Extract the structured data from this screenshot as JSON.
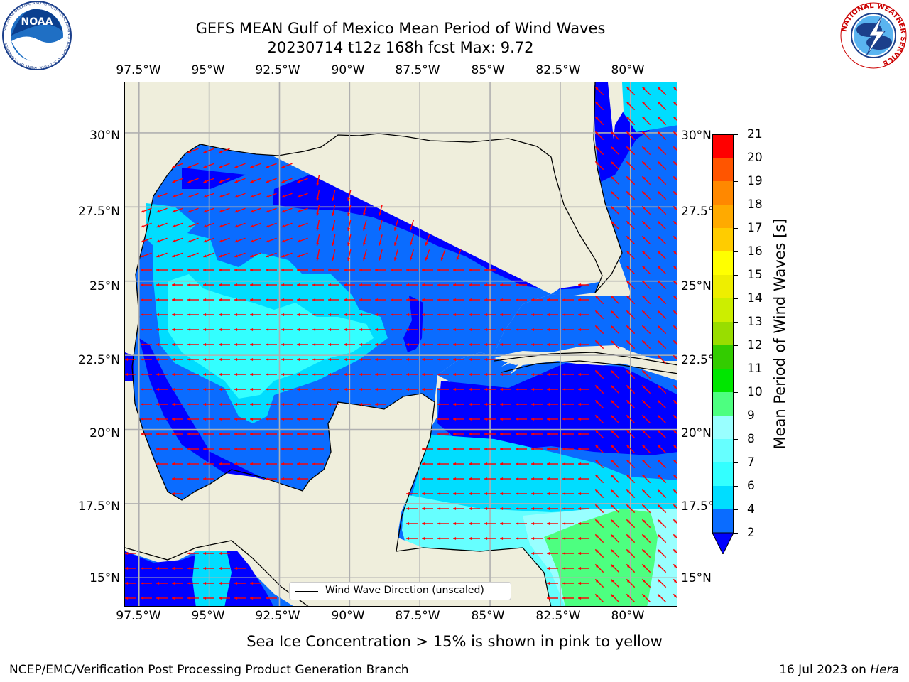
{
  "header": {
    "title_line1": "GEFS MEAN Gulf of Mexico Mean Period of Wind Waves",
    "title_line2": "20230714 t12z 168h fcst   Max: 9.72"
  },
  "logos": {
    "left": {
      "name": "noaa-logo",
      "text": "NOAA",
      "ring_text": "NATIONAL OCEANIC AND ATMOSPHERIC ADMINISTRATION · U.S. DEPARTMENT OF COMMERCE"
    },
    "right": {
      "name": "nws-logo",
      "ring_text": "NATIONAL WEATHER SERVICE"
    }
  },
  "map": {
    "lon_ticks": [
      "97.5°W",
      "95°W",
      "92.5°W",
      "90°W",
      "87.5°W",
      "85°W",
      "82.5°W",
      "80°W"
    ],
    "lat_ticks_left": [
      "30°N",
      "27.5°N",
      "25°N",
      "22.5°N",
      "20°N",
      "17.5°N",
      "15°N"
    ],
    "lat_ticks_right": [
      "30°N",
      "27.5°",
      "25°N",
      "22.5°",
      "20°N",
      "17.5°",
      "15°N"
    ],
    "lon_range": [
      -98,
      -78.3
    ],
    "lat_range": [
      14.0,
      31.7
    ],
    "colors": {
      "land": "#efeedc",
      "grid": "#b0b0b0",
      "arrow": "#ff0000",
      "coast": "#000000"
    }
  },
  "legend": {
    "label": "Wind Wave Direction (unscaled)"
  },
  "colorbar": {
    "title": "Mean Period of Wind Waves [s]",
    "levels": [
      "2",
      "4",
      "6",
      "7",
      "8",
      "9",
      "10",
      "11",
      "12",
      "13",
      "14",
      "15",
      "16",
      "17",
      "18",
      "19",
      "20",
      "21"
    ],
    "colors": [
      "#0a6cff",
      "#00ddff",
      "#33ffff",
      "#66ffff",
      "#99ffff",
      "#4dff80",
      "#00e600",
      "#33cc00",
      "#99dd00",
      "#ccee00",
      "#eeee00",
      "#ffff00",
      "#ffcc00",
      "#ffaa00",
      "#ff8800",
      "#ff5500",
      "#ff0000"
    ],
    "extend_color": "#0000ff"
  },
  "footer": {
    "note": "Sea Ice Concentration > 15% is shown in pink to yellow",
    "left_credit": "NCEP/EMC/Verification Post Processing Product Generation Branch",
    "right_credit_prefix": "16 Jul 2023 on ",
    "right_credit_machine": "Hera"
  }
}
